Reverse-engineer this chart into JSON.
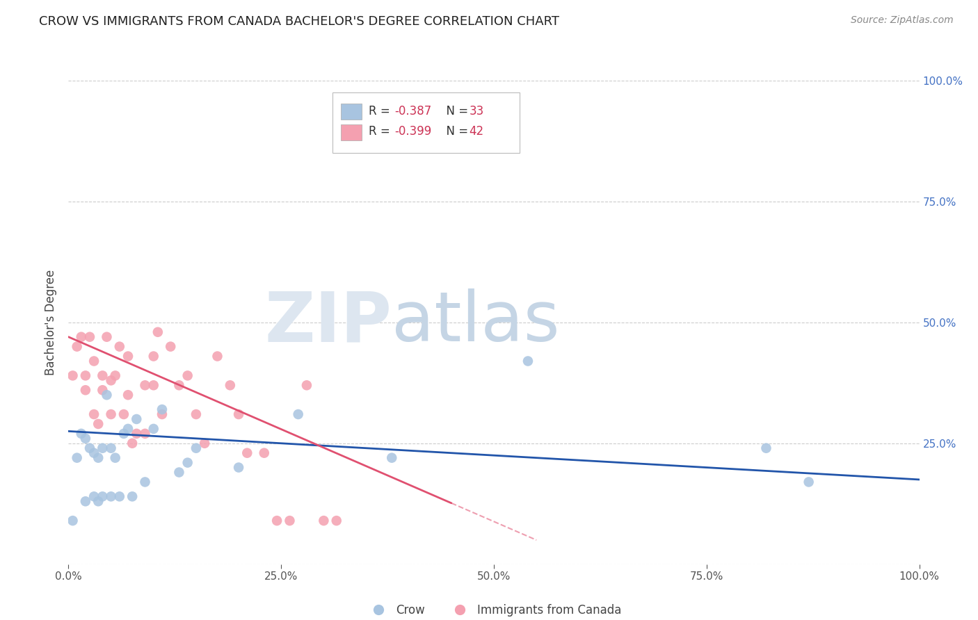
{
  "title": "CROW VS IMMIGRANTS FROM CANADA BACHELOR'S DEGREE CORRELATION CHART",
  "source": "Source: ZipAtlas.com",
  "ylabel": "Bachelor's Degree",
  "legend_label1": "Crow",
  "legend_label2": "Immigrants from Canada",
  "crow_color": "#a8c4e0",
  "canada_color": "#f4a0b0",
  "crow_line_color": "#2255aa",
  "canada_line_color": "#e05070",
  "xlim": [
    0.0,
    1.0
  ],
  "ylim": [
    0.0,
    1.0
  ],
  "background_color": "#ffffff",
  "grid_color": "#cccccc",
  "crow_x": [
    0.005,
    0.01,
    0.015,
    0.02,
    0.02,
    0.025,
    0.03,
    0.03,
    0.035,
    0.035,
    0.04,
    0.04,
    0.045,
    0.05,
    0.05,
    0.055,
    0.06,
    0.065,
    0.07,
    0.075,
    0.08,
    0.09,
    0.1,
    0.11,
    0.13,
    0.14,
    0.15,
    0.2,
    0.27,
    0.38,
    0.54,
    0.82,
    0.87
  ],
  "crow_y": [
    0.09,
    0.22,
    0.27,
    0.13,
    0.26,
    0.24,
    0.14,
    0.23,
    0.13,
    0.22,
    0.24,
    0.14,
    0.35,
    0.14,
    0.24,
    0.22,
    0.14,
    0.27,
    0.28,
    0.14,
    0.3,
    0.17,
    0.28,
    0.32,
    0.19,
    0.21,
    0.24,
    0.2,
    0.31,
    0.22,
    0.42,
    0.24,
    0.17
  ],
  "canada_x": [
    0.005,
    0.01,
    0.015,
    0.02,
    0.02,
    0.025,
    0.03,
    0.03,
    0.035,
    0.04,
    0.04,
    0.045,
    0.05,
    0.05,
    0.055,
    0.06,
    0.065,
    0.07,
    0.07,
    0.075,
    0.08,
    0.09,
    0.09,
    0.1,
    0.1,
    0.105,
    0.11,
    0.12,
    0.13,
    0.14,
    0.15,
    0.16,
    0.175,
    0.19,
    0.2,
    0.21,
    0.23,
    0.245,
    0.26,
    0.28,
    0.3,
    0.315
  ],
  "canada_y": [
    0.39,
    0.45,
    0.47,
    0.36,
    0.39,
    0.47,
    0.31,
    0.42,
    0.29,
    0.36,
    0.39,
    0.47,
    0.31,
    0.38,
    0.39,
    0.45,
    0.31,
    0.35,
    0.43,
    0.25,
    0.27,
    0.27,
    0.37,
    0.37,
    0.43,
    0.48,
    0.31,
    0.45,
    0.37,
    0.39,
    0.31,
    0.25,
    0.43,
    0.37,
    0.31,
    0.23,
    0.23,
    0.09,
    0.09,
    0.37,
    0.09,
    0.09
  ],
  "canada_line_solid_end": 0.45,
  "crow_trendline": [
    0.0,
    1.0,
    0.275,
    0.175
  ],
  "canada_trendline": [
    0.0,
    0.55,
    0.47,
    0.05
  ]
}
